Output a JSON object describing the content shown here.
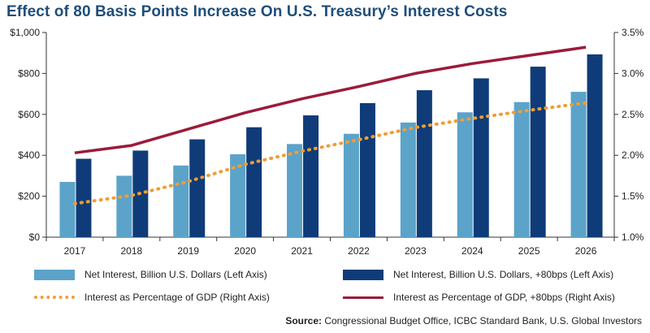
{
  "title": "Effect of 80 Basis Points Increase On U.S. Treasury’s Interest Costs",
  "source_label": "Source:",
  "source_text": "Congressional Budget Office, ICBC Standard Bank, U.S. Global Investors",
  "colors": {
    "title": "#1f4e79",
    "net_interest": "#5ba3c9",
    "net_interest_80": "#0f3c78",
    "pct_gdp": "#f39c33",
    "pct_gdp_80": "#9b1b3a",
    "axis": "#333333",
    "grid": "#e6e6e6"
  },
  "chart_data": {
    "type": "bar",
    "categories": [
      "2017",
      "2018",
      "2019",
      "2020",
      "2021",
      "2022",
      "2023",
      "2024",
      "2025",
      "2026"
    ],
    "y_left": {
      "min": 0,
      "max": 1000,
      "ticks": [
        0,
        200,
        400,
        600,
        800,
        1000
      ],
      "tick_labels": [
        "$0",
        "$200",
        "$400",
        "$600",
        "$800",
        "$1,000"
      ]
    },
    "y_right": {
      "min": 1.0,
      "max": 3.5,
      "ticks": [
        1.0,
        1.5,
        2.0,
        2.5,
        3.0,
        3.5
      ],
      "tick_labels": [
        "1.0%",
        "1.5%",
        "2.0%",
        "2.5%",
        "3.0%",
        "3.5%"
      ]
    },
    "series": [
      {
        "name": "Net Interest, Billion U.S. Dollars (Left Axis)",
        "kind": "bar",
        "axis": "left",
        "values": [
          270,
          300,
          350,
          405,
          455,
          505,
          560,
          610,
          660,
          710
        ]
      },
      {
        "name": "Net Interest, Billion U.S. Dollars, +80bps (Left Axis)",
        "kind": "bar",
        "axis": "left",
        "values": [
          383,
          423,
          478,
          537,
          595,
          655,
          718,
          776,
          833,
          893
        ]
      },
      {
        "name": "Interest as Percentage of GDP (Right Axis)",
        "kind": "line-dashed",
        "axis": "right",
        "values": [
          1.41,
          1.51,
          1.68,
          1.89,
          2.05,
          2.19,
          2.34,
          2.45,
          2.55,
          2.64
        ]
      },
      {
        "name": "Interest as Percentage of GDP, +80bps (Right Axis)",
        "kind": "line",
        "axis": "right",
        "values": [
          2.03,
          2.12,
          2.32,
          2.52,
          2.69,
          2.84,
          3.0,
          3.12,
          3.22,
          3.32
        ]
      }
    ],
    "legend_position": "bottom",
    "grid": false
  }
}
